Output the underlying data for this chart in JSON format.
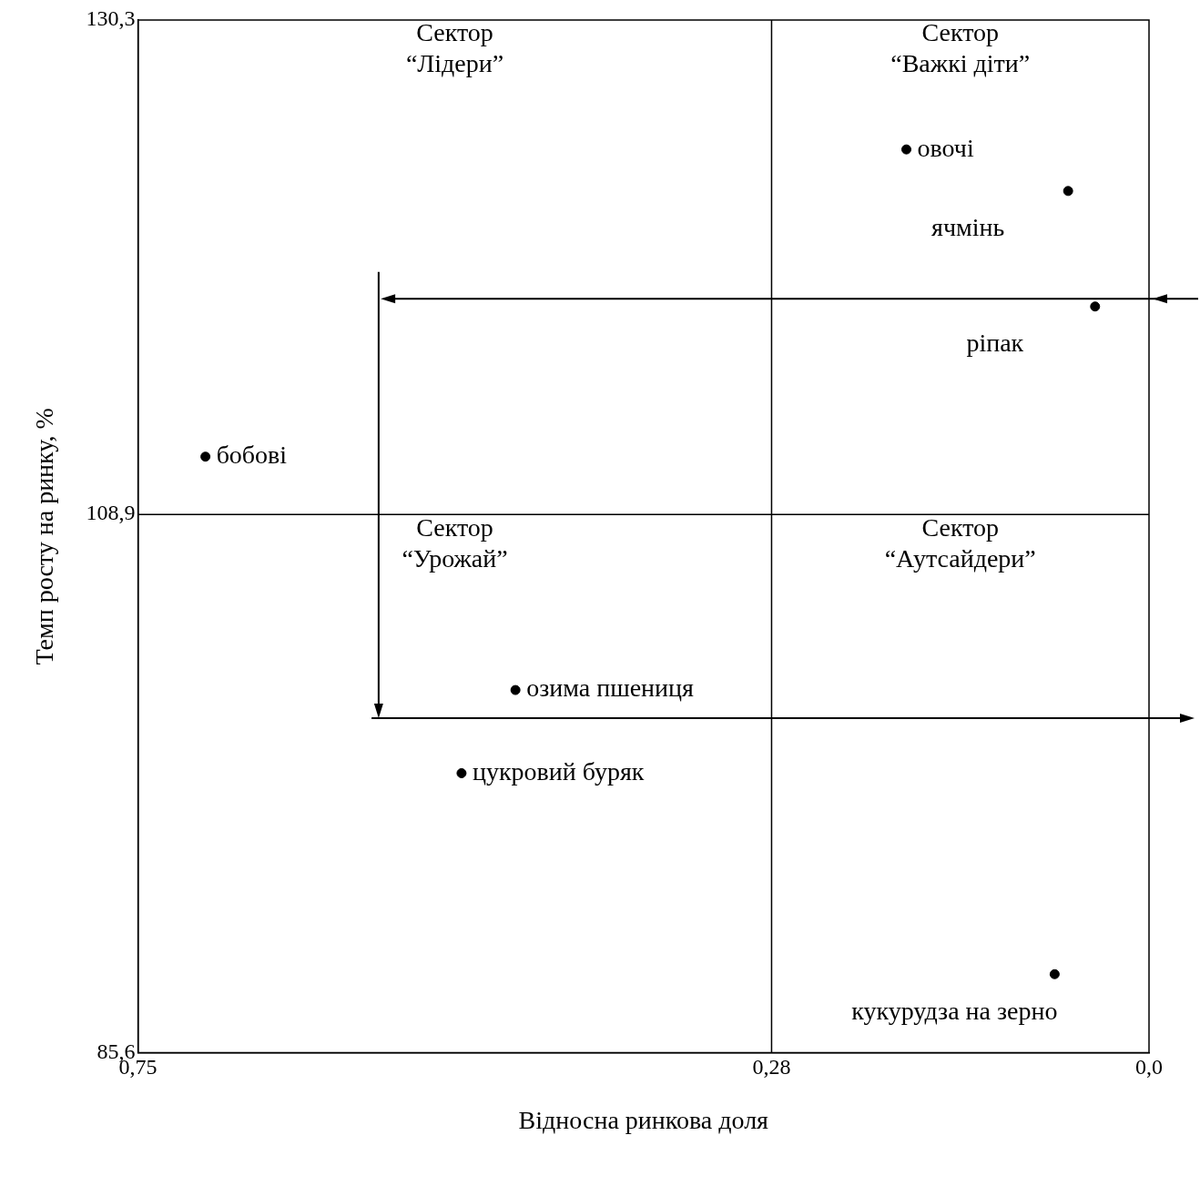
{
  "chart_data": {
    "type": "scatter",
    "xlabel": "Відносна ринкова доля",
    "ylabel": "Темп росту на ринку, %",
    "xlim": [
      0.75,
      0.0
    ],
    "xticks": [
      {
        "value": 0.75,
        "label": "0,75"
      },
      {
        "value": 0.28,
        "label": "0,28"
      },
      {
        "value": 0.0,
        "label": "0,0"
      }
    ],
    "ylim": [
      85.6,
      130.3
    ],
    "yticks": [
      {
        "value": 85.6,
        "label": "85,6"
      },
      {
        "value": 108.9,
        "label": "108,9"
      },
      {
        "value": 130.3,
        "label": "130,3"
      }
    ],
    "grid": false,
    "legend": false,
    "marker": "circle",
    "series": [
      {
        "name": "бобові",
        "color": "#000000",
        "x": [
          0.7
        ],
        "values": [
          111.4
        ]
      },
      {
        "name": "овочі",
        "color": "#000000",
        "x": [
          0.18
        ],
        "values": [
          124.7
        ]
      },
      {
        "name": "ячмінь",
        "color": "#000000",
        "x": [
          0.06
        ],
        "values": [
          122.9
        ]
      },
      {
        "name": "ріпак",
        "color": "#000000",
        "x": [
          0.04
        ],
        "values": [
          117.9
        ]
      },
      {
        "name": "озима пшениця",
        "color": "#000000",
        "x": [
          0.47
        ],
        "values": [
          101.3
        ]
      },
      {
        "name": "цукровий буряк",
        "color": "#000000",
        "x": [
          0.51
        ],
        "values": [
          97.7
        ]
      },
      {
        "name": "кукурудза на зерно",
        "color": "#000000",
        "x": [
          0.07
        ],
        "values": [
          89.0
        ]
      }
    ],
    "ref_lines": [
      {
        "axis": "x",
        "value": 0.28,
        "color": "#000000"
      },
      {
        "axis": "y",
        "value": 108.9,
        "color": "#000000"
      }
    ],
    "annotations": [
      "Сектор “Лідери”",
      "Сектор “Важкі діти”",
      "Сектор “Урожай”",
      "Сектор “Аутсайдери”"
    ]
  }
}
